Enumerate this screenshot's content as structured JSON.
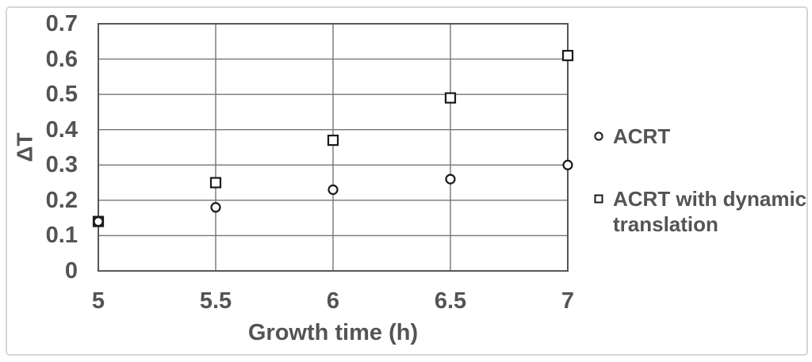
{
  "figure": {
    "background": "#ffffff",
    "frame_border_color": "#d6d6d6"
  },
  "chart_data": {
    "type": "scatter",
    "xlabel": "Growth time (h)",
    "ylabel": "ΔT",
    "xlim": [
      5,
      7
    ],
    "ylim": [
      0,
      0.7
    ],
    "x_ticks": [
      5,
      5.5,
      6,
      6.5,
      7
    ],
    "x_tick_labels": [
      "5",
      "5.5",
      "6",
      "6.5",
      "7"
    ],
    "y_ticks": [
      0,
      0.1,
      0.2,
      0.3,
      0.4,
      0.5,
      0.6,
      0.7
    ],
    "y_tick_labels": [
      "0",
      "0.1",
      "0.2",
      "0.3",
      "0.4",
      "0.5",
      "0.6",
      "0.7"
    ],
    "grid": true,
    "legend_position": "right",
    "series": [
      {
        "name": "ACRT",
        "marker": "circle",
        "x": [
          5,
          5.5,
          6,
          6.5,
          7
        ],
        "y": [
          0.14,
          0.18,
          0.23,
          0.26,
          0.3
        ]
      },
      {
        "name": "ACRT with dynamic translation",
        "marker": "square",
        "x": [
          5,
          5.5,
          6,
          6.5,
          7
        ],
        "y": [
          0.14,
          0.25,
          0.37,
          0.49,
          0.61
        ]
      }
    ],
    "draw_order": [
      1,
      0
    ],
    "colors": {
      "marker": "#1a1a1a",
      "marker_fill": "#ffffff",
      "grid": "#757575",
      "plot_border": "#565656",
      "text": "#545454"
    }
  }
}
